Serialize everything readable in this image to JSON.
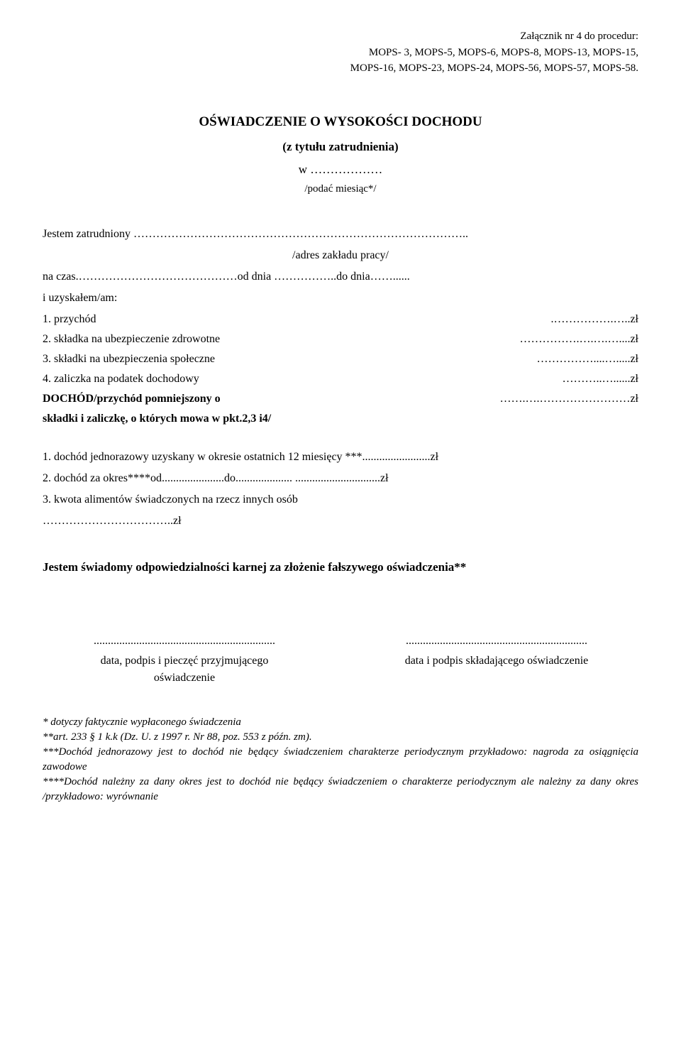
{
  "attachment_header": {
    "line1": "Załącznik nr 4 do procedur:",
    "line2": "MOPS- 3, MOPS-5, MOPS-6, MOPS-8, MOPS-13, MOPS-15,",
    "line3": "MOPS-16, MOPS-23, MOPS-24, MOPS-56, MOPS-57, MOPS-58."
  },
  "doc_title": "OŚWIADCZENIE O WYSOKOŚCI DOCHODU",
  "doc_subtitle": "(z tytułu zatrudnienia)",
  "month_prefix": "w ………………",
  "month_note": "/podać miesiąc*/",
  "employed_line": "Jestem zatrudniony ……………………………………………………………………………..",
  "workplace_note": "/adres zakładu pracy/",
  "time_line": "na czas.……………………………………od dnia ……………..do dnia……......",
  "obtained_line": "i uzyskałem/am:",
  "items": [
    {
      "label": "1.   przychód",
      "value": ".…………….…..zł"
    },
    {
      "label": "2.   składka na ubezpieczenie zdrowotne",
      "value": "…………….….….…....zł"
    },
    {
      "label": "3.   składki na ubezpieczenia społeczne",
      "value": "……………....….....zł"
    },
    {
      "label": "4.   zaliczka na podatek dochodowy",
      "value": "………..…......zł"
    }
  ],
  "dochod_row": {
    "label": "DOCHÓD/przychód pomniejszony o",
    "value": "…….….……………………zł"
  },
  "dochod_note": "składki i zaliczkę, o których mowa w pkt.2,3 i4/",
  "secondary": [
    "1.   dochód jednorazowy uzyskany w okresie ostatnich 12 miesięcy ***........................zł",
    "2.   dochód za okres****od......................do....................                          ..............................zł",
    "3.   kwota alimentów świadczonych na rzecz innych osób",
    "       ……………………………..zł"
  ],
  "awareness_text": "Jestem świadomy odpowiedzialności karnej za złożenie fałszywego oświadczenia**",
  "signatures": {
    "left_dots": "................................................................",
    "left_label1": "data, podpis i pieczęć przyjmującego",
    "left_label2": "oświadczenie",
    "right_dots": "................................................................",
    "right_label": "data i podpis składającego oświadczenie"
  },
  "footnotes": {
    "f1": "* dotyczy faktycznie wypłaconego świadczenia",
    "f2": "**art. 233 § 1 k.k (Dz. U. z 1997 r. Nr 88, poz. 553 z późn. zm).",
    "f3": "***Dochód jednorazowy jest to dochód nie będący świadczeniem charakterze periodycznym przykładowo: nagroda za osiągnięcia zawodowe",
    "f4": "****Dochód należny za dany okres jest to dochód nie będący świadczeniem o charakterze periodycznym ale należny za dany okres /przykładowo: wyrównanie"
  },
  "colors": {
    "text": "#000000",
    "background": "#ffffff"
  },
  "fonts": {
    "body_family": "Times New Roman",
    "body_size_pt": 12,
    "title_size_pt": 14,
    "title_weight": "bold"
  }
}
